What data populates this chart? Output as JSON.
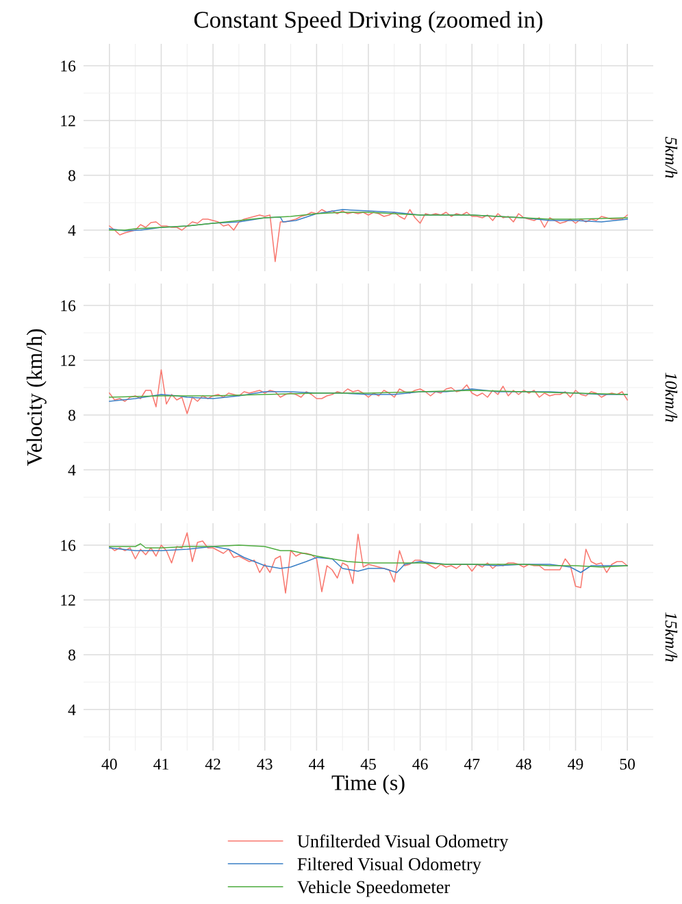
{
  "chart_data": [
    {
      "type": "line",
      "title": "Constant Speed Driving (zoomed in)",
      "y2label": "5km/h",
      "tick_labels": "y",
      "grid": true,
      "legend": "bottom",
      "xlim": [
        39.5,
        50.5
      ],
      "ylim": [
        1,
        17.6
      ],
      "xticks": [
        40,
        {
          "value": 40.5,
          "label": null
        },
        41,
        {
          "value": 41.5,
          "label": null
        },
        42,
        {
          "value": 42.5,
          "label": null
        },
        43,
        {
          "value": 43.5,
          "label": null
        },
        44,
        {
          "value": 44.5,
          "label": null
        },
        45,
        {
          "value": 45.5,
          "label": null
        },
        46,
        {
          "value": 46.5,
          "label": null
        },
        47,
        {
          "value": 47.5,
          "label": null
        },
        48,
        {
          "value": 48.5,
          "label": null
        },
        49,
        {
          "value": 49.5,
          "label": null
        },
        50
      ],
      "yticks": [
        {
          "value": 2,
          "label": null
        },
        4,
        {
          "value": 6,
          "label": null
        },
        8,
        {
          "value": 10,
          "label": null
        },
        12,
        {
          "value": 14,
          "label": null
        },
        16
      ],
      "x": [
        40.0,
        40.1,
        40.2,
        40.3,
        40.4,
        40.5,
        40.6,
        40.7,
        40.8,
        40.9,
        41.0,
        41.1,
        41.2,
        41.3,
        41.4,
        41.5,
        41.6,
        41.7,
        41.8,
        41.9,
        42.0,
        42.1,
        42.2,
        42.3,
        42.4,
        42.5,
        42.6,
        42.7,
        42.8,
        42.9,
        43.0,
        43.1,
        43.2,
        43.3,
        43.4,
        43.5,
        43.6,
        43.7,
        43.8,
        43.9,
        44.0,
        44.1,
        44.2,
        44.3,
        44.4,
        44.5,
        44.6,
        44.7,
        44.8,
        44.9,
        45.0,
        45.1,
        45.2,
        45.3,
        45.4,
        45.5,
        45.6,
        45.7,
        45.8,
        45.9,
        46.0,
        46.1,
        46.2,
        46.3,
        46.4,
        46.5,
        46.6,
        46.7,
        46.8,
        46.9,
        47.0,
        47.1,
        47.2,
        47.3,
        47.4,
        47.5,
        47.6,
        47.7,
        47.8,
        47.9,
        48.0,
        48.1,
        48.2,
        48.3,
        48.4,
        48.5,
        48.6,
        48.7,
        48.8,
        48.9,
        49.0,
        49.1,
        49.2,
        49.3,
        49.4,
        49.5,
        49.6,
        49.7,
        49.8,
        49.9,
        50.0
      ],
      "series": [
        {
          "name": "Unfilterded Visual Odometry",
          "color": "#f8766d",
          "values": [
            4.3,
            4.0,
            3.65,
            3.8,
            3.9,
            4.0,
            4.4,
            4.2,
            4.55,
            4.6,
            4.3,
            4.3,
            4.2,
            4.2,
            4.0,
            4.3,
            4.6,
            4.5,
            4.8,
            4.8,
            4.7,
            4.6,
            4.3,
            4.4,
            4.0,
            4.6,
            4.8,
            4.9,
            5.0,
            5.1,
            5.0,
            5.1,
            1.7,
            4.6,
            4.6,
            4.7,
            4.8,
            5.0,
            5.1,
            5.3,
            5.2,
            5.5,
            5.3,
            5.4,
            5.2,
            5.4,
            5.2,
            5.3,
            5.2,
            5.3,
            5.1,
            5.3,
            5.2,
            5.0,
            5.1,
            5.3,
            5.0,
            4.8,
            5.5,
            4.9,
            4.5,
            5.2,
            5.1,
            5.2,
            5.1,
            5.3,
            5.0,
            5.2,
            5.1,
            5.3,
            5.0,
            5.0,
            4.9,
            5.1,
            4.7,
            5.2,
            4.9,
            5.0,
            4.6,
            5.2,
            4.9,
            4.8,
            4.7,
            4.9,
            4.2,
            4.9,
            4.7,
            4.5,
            4.6,
            4.8,
            4.5,
            4.8,
            4.6,
            4.8,
            4.7,
            5.0,
            4.9,
            4.8,
            4.8,
            4.8,
            5.1
          ]
        },
        {
          "name": "Filtered Visual Odometry",
          "color": "#3a7fc6",
          "x": [
            40,
            40.3,
            40.6,
            41,
            41.5,
            42,
            42.5,
            43,
            43.3,
            43.35,
            43.6,
            44,
            44.5,
            45,
            45.5,
            46,
            46.5,
            47,
            47.5,
            48,
            48.5,
            49,
            49.5,
            50
          ],
          "values": [
            4.1,
            3.95,
            4.0,
            4.2,
            4.3,
            4.5,
            4.6,
            4.9,
            4.95,
            4.6,
            4.7,
            5.2,
            5.5,
            5.4,
            5.3,
            5.1,
            5.1,
            5.1,
            5.0,
            4.9,
            4.7,
            4.7,
            4.6,
            4.8
          ]
        },
        {
          "name": "Vehicle Speedometer",
          "color": "#4dac3f",
          "x": [
            40,
            40.3,
            40.5,
            41,
            41.5,
            42,
            42.5,
            43,
            43.5,
            44,
            44.5,
            45,
            45.5,
            46,
            46.5,
            47,
            47.5,
            48,
            48.5,
            49,
            49.5,
            50
          ],
          "values": [
            4.0,
            4.0,
            4.1,
            4.2,
            4.3,
            4.5,
            4.7,
            4.9,
            5.0,
            5.2,
            5.3,
            5.3,
            5.2,
            5.1,
            5.1,
            5.1,
            5.0,
            4.9,
            4.8,
            4.8,
            4.85,
            4.9
          ]
        }
      ]
    },
    {
      "type": "line",
      "y2label": "10km/h",
      "ylabel": "Velocity (km/h)",
      "tick_labels": "y",
      "grid": true,
      "xlim": [
        39.5,
        50.5
      ],
      "ylim": [
        1,
        17.6
      ],
      "xticks": [
        40,
        {
          "value": 40.5,
          "label": null
        },
        41,
        {
          "value": 41.5,
          "label": null
        },
        42,
        {
          "value": 42.5,
          "label": null
        },
        43,
        {
          "value": 43.5,
          "label": null
        },
        44,
        {
          "value": 44.5,
          "label": null
        },
        45,
        {
          "value": 45.5,
          "label": null
        },
        46,
        {
          "value": 46.5,
          "label": null
        },
        47,
        {
          "value": 47.5,
          "label": null
        },
        48,
        {
          "value": 48.5,
          "label": null
        },
        49,
        {
          "value": 49.5,
          "label": null
        },
        50
      ],
      "yticks": [
        {
          "value": 2,
          "label": null
        },
        4,
        {
          "value": 6,
          "label": null
        },
        8,
        {
          "value": 10,
          "label": null
        },
        12,
        {
          "value": 14,
          "label": null
        },
        16
      ],
      "x": [
        40.0,
        40.1,
        40.2,
        40.3,
        40.4,
        40.5,
        40.6,
        40.7,
        40.8,
        40.9,
        41.0,
        41.1,
        41.2,
        41.3,
        41.4,
        41.5,
        41.6,
        41.7,
        41.8,
        41.9,
        42.0,
        42.1,
        42.2,
        42.3,
        42.4,
        42.5,
        42.6,
        42.7,
        42.8,
        42.9,
        43.0,
        43.1,
        43.2,
        43.3,
        43.4,
        43.5,
        43.6,
        43.7,
        43.8,
        43.9,
        44.0,
        44.1,
        44.2,
        44.3,
        44.4,
        44.5,
        44.6,
        44.7,
        44.8,
        44.9,
        45.0,
        45.1,
        45.2,
        45.3,
        45.4,
        45.5,
        45.6,
        45.7,
        45.8,
        45.9,
        46.0,
        46.1,
        46.2,
        46.3,
        46.4,
        46.5,
        46.6,
        46.7,
        46.8,
        46.9,
        47.0,
        47.1,
        47.2,
        47.3,
        47.4,
        47.5,
        47.6,
        47.7,
        47.8,
        47.9,
        48.0,
        48.1,
        48.2,
        48.3,
        48.4,
        48.5,
        48.6,
        48.7,
        48.8,
        48.9,
        49.0,
        49.1,
        49.2,
        49.3,
        49.4,
        49.5,
        49.6,
        49.7,
        49.8,
        49.9,
        50.0
      ],
      "series": [
        {
          "color": "#f8766d",
          "values": [
            9.6,
            9.1,
            9.2,
            9.0,
            9.3,
            9.4,
            9.2,
            9.8,
            9.8,
            8.6,
            11.3,
            8.8,
            9.5,
            9.1,
            9.3,
            8.1,
            9.3,
            9.0,
            9.4,
            9.2,
            9.4,
            9.5,
            9.3,
            9.6,
            9.5,
            9.4,
            9.7,
            9.6,
            9.7,
            9.8,
            9.6,
            9.8,
            9.7,
            9.3,
            9.5,
            9.6,
            9.5,
            9.3,
            9.7,
            9.5,
            9.2,
            9.2,
            9.4,
            9.5,
            9.7,
            9.6,
            9.9,
            9.7,
            9.8,
            9.6,
            9.3,
            9.6,
            9.4,
            9.8,
            9.6,
            9.3,
            9.9,
            9.7,
            9.6,
            9.8,
            9.9,
            9.7,
            9.4,
            9.7,
            9.6,
            9.9,
            10.0,
            9.7,
            9.8,
            10.2,
            9.6,
            9.4,
            9.6,
            9.3,
            9.8,
            9.5,
            10.1,
            9.4,
            9.8,
            9.5,
            9.8,
            9.6,
            9.8,
            9.3,
            9.6,
            9.4,
            9.5,
            9.5,
            9.7,
            9.3,
            9.8,
            9.5,
            9.4,
            9.7,
            9.6,
            9.3,
            9.5,
            9.6,
            9.5,
            9.7,
            9.1
          ]
        },
        {
          "color": "#3a7fc6",
          "x": [
            40,
            40.5,
            41,
            41.3,
            41.5,
            42,
            42.5,
            43,
            43.5,
            44,
            44.5,
            45,
            45.5,
            46,
            46.5,
            47,
            47.5,
            48,
            48.5,
            49,
            49.5,
            50
          ],
          "values": [
            9.0,
            9.2,
            9.5,
            9.4,
            9.3,
            9.2,
            9.4,
            9.7,
            9.7,
            9.6,
            9.6,
            9.5,
            9.5,
            9.7,
            9.7,
            9.9,
            9.7,
            9.7,
            9.7,
            9.6,
            9.5,
            9.5
          ]
        },
        {
          "color": "#4dac3f",
          "x": [
            40,
            41,
            42,
            43,
            44,
            45,
            46,
            47,
            48,
            49,
            50
          ],
          "values": [
            9.3,
            9.4,
            9.4,
            9.5,
            9.6,
            9.6,
            9.7,
            9.8,
            9.7,
            9.6,
            9.5
          ]
        }
      ]
    },
    {
      "type": "line",
      "y2label": "15km/h",
      "xlabel": "Time (s)",
      "grid": true,
      "xlim": [
        39.5,
        50.5
      ],
      "ylim": [
        1,
        17.6
      ],
      "xticks": [
        40,
        {
          "value": 40.5,
          "label": null
        },
        41,
        {
          "value": 41.5,
          "label": null
        },
        42,
        {
          "value": 42.5,
          "label": null
        },
        43,
        {
          "value": 43.5,
          "label": null
        },
        44,
        {
          "value": 44.5,
          "label": null
        },
        45,
        {
          "value": 45.5,
          "label": null
        },
        46,
        {
          "value": 46.5,
          "label": null
        },
        47,
        {
          "value": 47.5,
          "label": null
        },
        48,
        {
          "value": 48.5,
          "label": null
        },
        49,
        {
          "value": 49.5,
          "label": null
        },
        50
      ],
      "yticks": [
        {
          "value": 2,
          "label": null
        },
        4,
        {
          "value": 6,
          "label": null
        },
        8,
        {
          "value": 10,
          "label": null
        },
        12,
        {
          "value": 14,
          "label": null
        },
        16
      ],
      "x": [
        40.0,
        40.1,
        40.2,
        40.3,
        40.4,
        40.5,
        40.6,
        40.7,
        40.8,
        40.9,
        41.0,
        41.1,
        41.2,
        41.3,
        41.4,
        41.5,
        41.6,
        41.7,
        41.8,
        41.9,
        42.0,
        42.1,
        42.2,
        42.3,
        42.4,
        42.5,
        42.6,
        42.7,
        42.8,
        42.9,
        43.0,
        43.1,
        43.2,
        43.3,
        43.4,
        43.5,
        43.6,
        43.7,
        43.8,
        43.9,
        44.0,
        44.1,
        44.2,
        44.3,
        44.4,
        44.5,
        44.6,
        44.7,
        44.8,
        44.9,
        45.0,
        45.1,
        45.2,
        45.3,
        45.4,
        45.5,
        45.6,
        45.7,
        45.8,
        45.9,
        46.0,
        46.1,
        46.2,
        46.3,
        46.4,
        46.5,
        46.6,
        46.7,
        46.8,
        46.9,
        47.0,
        47.1,
        47.2,
        47.3,
        47.4,
        47.5,
        47.6,
        47.7,
        47.8,
        47.9,
        48.0,
        48.1,
        48.2,
        48.3,
        48.4,
        48.5,
        48.6,
        48.7,
        48.8,
        48.9,
        49.0,
        49.1,
        49.2,
        49.3,
        49.4,
        49.5,
        49.6,
        49.7,
        49.8,
        49.9,
        50.0
      ],
      "series": [
        {
          "color": "#f8766d",
          "values": [
            15.9,
            15.6,
            15.8,
            15.6,
            15.8,
            15.0,
            15.7,
            15.3,
            15.8,
            15.2,
            16.0,
            15.6,
            14.7,
            15.9,
            15.8,
            16.9,
            14.8,
            16.2,
            16.3,
            15.8,
            15.8,
            15.6,
            15.4,
            15.7,
            15.1,
            15.2,
            15.0,
            14.8,
            14.9,
            14.0,
            14.6,
            14.0,
            15.0,
            15.2,
            12.5,
            15.6,
            15.2,
            15.4,
            15.4,
            15.3,
            15.0,
            12.6,
            14.5,
            14.2,
            13.6,
            14.7,
            14.5,
            13.2,
            16.8,
            14.4,
            14.6,
            14.5,
            14.4,
            14.3,
            14.2,
            13.3,
            15.6,
            14.5,
            14.6,
            14.9,
            14.9,
            14.7,
            14.5,
            14.3,
            14.6,
            14.4,
            14.5,
            14.3,
            14.6,
            14.6,
            14.1,
            14.6,
            14.4,
            14.7,
            14.3,
            14.6,
            14.5,
            14.7,
            14.7,
            14.6,
            14.4,
            14.6,
            14.5,
            14.5,
            14.2,
            14.2,
            14.2,
            14.2,
            15.0,
            14.5,
            13.0,
            12.9,
            15.7,
            14.8,
            14.6,
            14.7,
            14.0,
            14.6,
            14.8,
            14.8,
            14.5
          ]
        },
        {
          "color": "#3a7fc6",
          "x": [
            40,
            40.5,
            41,
            41.5,
            42,
            42.3,
            42.6,
            43,
            43.3,
            43.5,
            43.8,
            44,
            44.3,
            44.5,
            44.8,
            45,
            45.3,
            45.55,
            45.7,
            46,
            46.5,
            47,
            47.5,
            48,
            48.5,
            48.9,
            49.1,
            49.3,
            49.6,
            50
          ],
          "values": [
            15.8,
            15.6,
            15.6,
            15.7,
            15.9,
            15.7,
            15.1,
            14.5,
            14.3,
            14.4,
            14.8,
            15.1,
            15.0,
            14.3,
            14.1,
            14.3,
            14.3,
            14.0,
            14.6,
            14.8,
            14.6,
            14.6,
            14.5,
            14.6,
            14.6,
            14.4,
            14.0,
            14.5,
            14.5,
            14.5
          ]
        },
        {
          "color": "#4dac3f",
          "x": [
            40,
            40.5,
            40.6,
            40.7,
            41,
            41.5,
            42,
            42.5,
            43,
            43.3,
            43.5,
            44,
            44.3,
            44.6,
            45,
            45.5,
            46,
            46.5,
            47,
            47.5,
            48,
            48.5,
            49,
            49.5,
            50
          ],
          "values": [
            15.9,
            15.9,
            16.1,
            15.8,
            15.8,
            15.9,
            15.9,
            16.0,
            15.9,
            15.6,
            15.6,
            15.2,
            15.0,
            14.8,
            14.7,
            14.7,
            14.7,
            14.6,
            14.6,
            14.6,
            14.6,
            14.5,
            14.5,
            14.4,
            14.5
          ]
        }
      ]
    }
  ]
}
